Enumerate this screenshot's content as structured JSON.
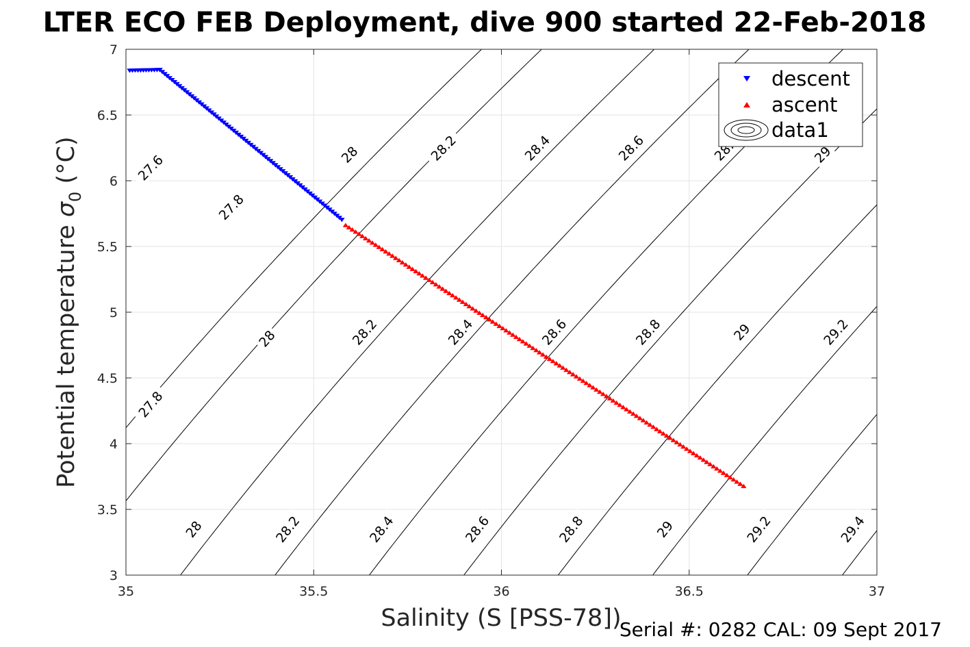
{
  "chart_data": {
    "type": "scatter",
    "title": "LTER ECO FEB Deployment, dive 900 started 22-Feb-2018",
    "xlabel": "Salinity (S [PSS-78])",
    "ylabel": "Potential temperature",
    "ylabel_symbol": "σ",
    "ylabel_subscript": "0",
    "ylabel_unit": "(°C)",
    "xlim": [
      35,
      37
    ],
    "ylim": [
      3,
      7
    ],
    "xticks": [
      35,
      35.5,
      36,
      36.5,
      37
    ],
    "xtick_labels": [
      "35",
      "35.5",
      "36",
      "36.5",
      "37"
    ],
    "yticks": [
      3,
      3.5,
      4,
      4.5,
      5,
      5.5,
      6,
      6.5,
      7
    ],
    "ytick_labels": [
      "3",
      "3.5",
      "4",
      "4.5",
      "5",
      "5.5",
      "6",
      "6.5",
      "7"
    ],
    "grid": true,
    "legend_position": "top-right",
    "series": [
      {
        "name": "descent",
        "marker": "triangle-down",
        "color": "#0000ff",
        "start": [
          35.09,
          6.845
        ],
        "end": [
          35.575,
          5.705
        ],
        "hook_end": [
          35.01,
          6.84
        ],
        "points": 75
      },
      {
        "name": "ascent",
        "marker": "triangle-up",
        "color": "#ff0000",
        "start": [
          35.585,
          5.66
        ],
        "end": [
          36.645,
          3.675
        ],
        "points": 120
      }
    ],
    "contours": {
      "name": "data1",
      "type": "isopycnals (sigma-0)",
      "levels": [
        {
          "label": "27.6",
          "s_at_3": 34.685,
          "label_s": 35.065,
          "label_t": 6.1
        },
        {
          "label": "27.8",
          "s_at_3": 34.845,
          "label_s": 35.065,
          "label_t": 4.3
        },
        {
          "label": "27.8",
          "s_at_3": 34.845,
          "label_s": 35.28,
          "label_t": 5.8
        },
        {
          "label": "28",
          "s_at_3": 35.145,
          "label_s": 35.18,
          "label_t": 3.35
        },
        {
          "label": "28",
          "s_at_3": 35.145,
          "label_s": 35.375,
          "label_t": 4.8
        },
        {
          "label": "28",
          "s_at_3": 35.145,
          "label_s": 35.595,
          "label_t": 6.2
        },
        {
          "label": "28.2",
          "s_at_3": 35.397,
          "label_s": 35.43,
          "label_t": 3.35
        },
        {
          "label": "28.2",
          "s_at_3": 35.397,
          "label_s": 35.635,
          "label_t": 4.85
        },
        {
          "label": "28.2",
          "s_at_3": 35.397,
          "label_s": 35.845,
          "label_t": 6.25
        },
        {
          "label": "28.4",
          "s_at_3": 35.648,
          "label_s": 35.68,
          "label_t": 3.35
        },
        {
          "label": "28.4",
          "s_at_3": 35.648,
          "label_s": 35.89,
          "label_t": 4.85
        },
        {
          "label": "28.4",
          "s_at_3": 35.648,
          "label_s": 36.095,
          "label_t": 6.25
        },
        {
          "label": "28.6",
          "s_at_3": 35.9,
          "label_s": 35.935,
          "label_t": 3.35
        },
        {
          "label": "28.6",
          "s_at_3": 35.9,
          "label_s": 36.14,
          "label_t": 4.85
        },
        {
          "label": "28.6",
          "s_at_3": 35.9,
          "label_s": 36.345,
          "label_t": 6.25
        },
        {
          "label": "28.8",
          "s_at_3": 36.151,
          "label_s": 36.185,
          "label_t": 3.35
        },
        {
          "label": "28.8",
          "s_at_3": 36.151,
          "label_s": 36.39,
          "label_t": 4.85
        },
        {
          "label": "28.8",
          "s_at_3": 36.151,
          "label_s": 36.6,
          "label_t": 6.25
        },
        {
          "label": "29",
          "s_at_3": 36.403,
          "label_s": 36.435,
          "label_t": 3.35
        },
        {
          "label": "29",
          "s_at_3": 36.403,
          "label_s": 36.64,
          "label_t": 4.85
        },
        {
          "label": "29",
          "s_at_3": 36.403,
          "label_s": 36.855,
          "label_t": 6.2
        },
        {
          "label": "29.2",
          "s_at_3": 36.655,
          "label_s": 36.685,
          "label_t": 3.35
        },
        {
          "label": "29.2",
          "s_at_3": 36.655,
          "label_s": 36.89,
          "label_t": 4.85
        },
        {
          "label": "29.4",
          "s_at_3": 36.908,
          "label_s": 36.935,
          "label_t": 3.35
        }
      ],
      "slope_ds_per_degC": 0.2675,
      "curvature": 0.012
    },
    "footer": "Serial #: 0282  CAL: 09 Sept 2017"
  }
}
